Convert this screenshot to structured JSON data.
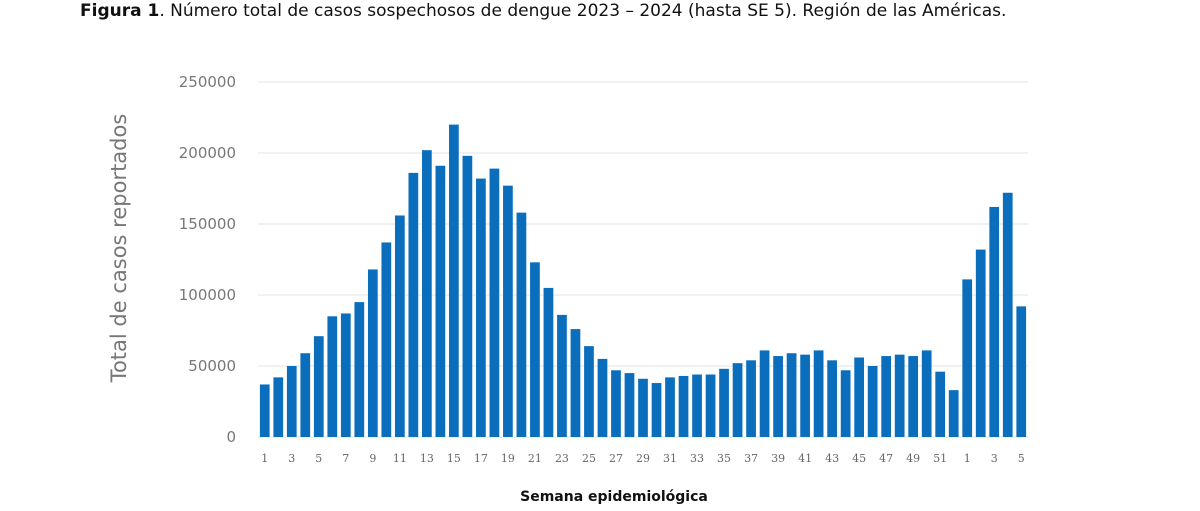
{
  "caption": {
    "label": "Figura 1",
    "text": ". Número total de casos sospechosos de dengue 2023 – 2024 (hasta SE 5). Región de las Américas."
  },
  "chart_data": {
    "type": "bar",
    "title": "Figura 1. Número total de casos sospechosos de dengue 2023 – 2024 (hasta SE 5). Región de las Américas.",
    "xlabel": "Semana epidemiológica",
    "ylabel": "Total de casos reportados",
    "ylim": [
      0,
      250000
    ],
    "yticks": [
      "0",
      "50000",
      "100000",
      "150000",
      "200000",
      "250000"
    ],
    "grid": true,
    "color": "#0a6ebd",
    "categories": [
      "1",
      "2",
      "3",
      "4",
      "5",
      "6",
      "7",
      "8",
      "9",
      "10",
      "11",
      "12",
      "13",
      "14",
      "15",
      "16",
      "17",
      "18",
      "19",
      "20",
      "21",
      "22",
      "23",
      "24",
      "25",
      "26",
      "27",
      "28",
      "29",
      "30",
      "31",
      "32",
      "33",
      "34",
      "35",
      "36",
      "37",
      "38",
      "39",
      "40",
      "41",
      "42",
      "43",
      "44",
      "45",
      "46",
      "47",
      "48",
      "49",
      "50",
      "51",
      "52",
      "1",
      "2",
      "3",
      "4",
      "5"
    ],
    "values": [
      37000,
      42000,
      50000,
      59000,
      71000,
      85000,
      87000,
      95000,
      118000,
      137000,
      156000,
      186000,
      202000,
      191000,
      220000,
      198000,
      182000,
      189000,
      177000,
      158000,
      123000,
      105000,
      86000,
      76000,
      64000,
      55000,
      47000,
      45000,
      41000,
      38000,
      42000,
      43000,
      44000,
      44000,
      48000,
      52000,
      54000,
      61000,
      57000,
      59000,
      58000,
      61000,
      54000,
      47000,
      56000,
      50000,
      57000,
      58000,
      57000,
      61000,
      46000,
      33000,
      111000,
      132000,
      162000,
      172000,
      92000
    ]
  }
}
